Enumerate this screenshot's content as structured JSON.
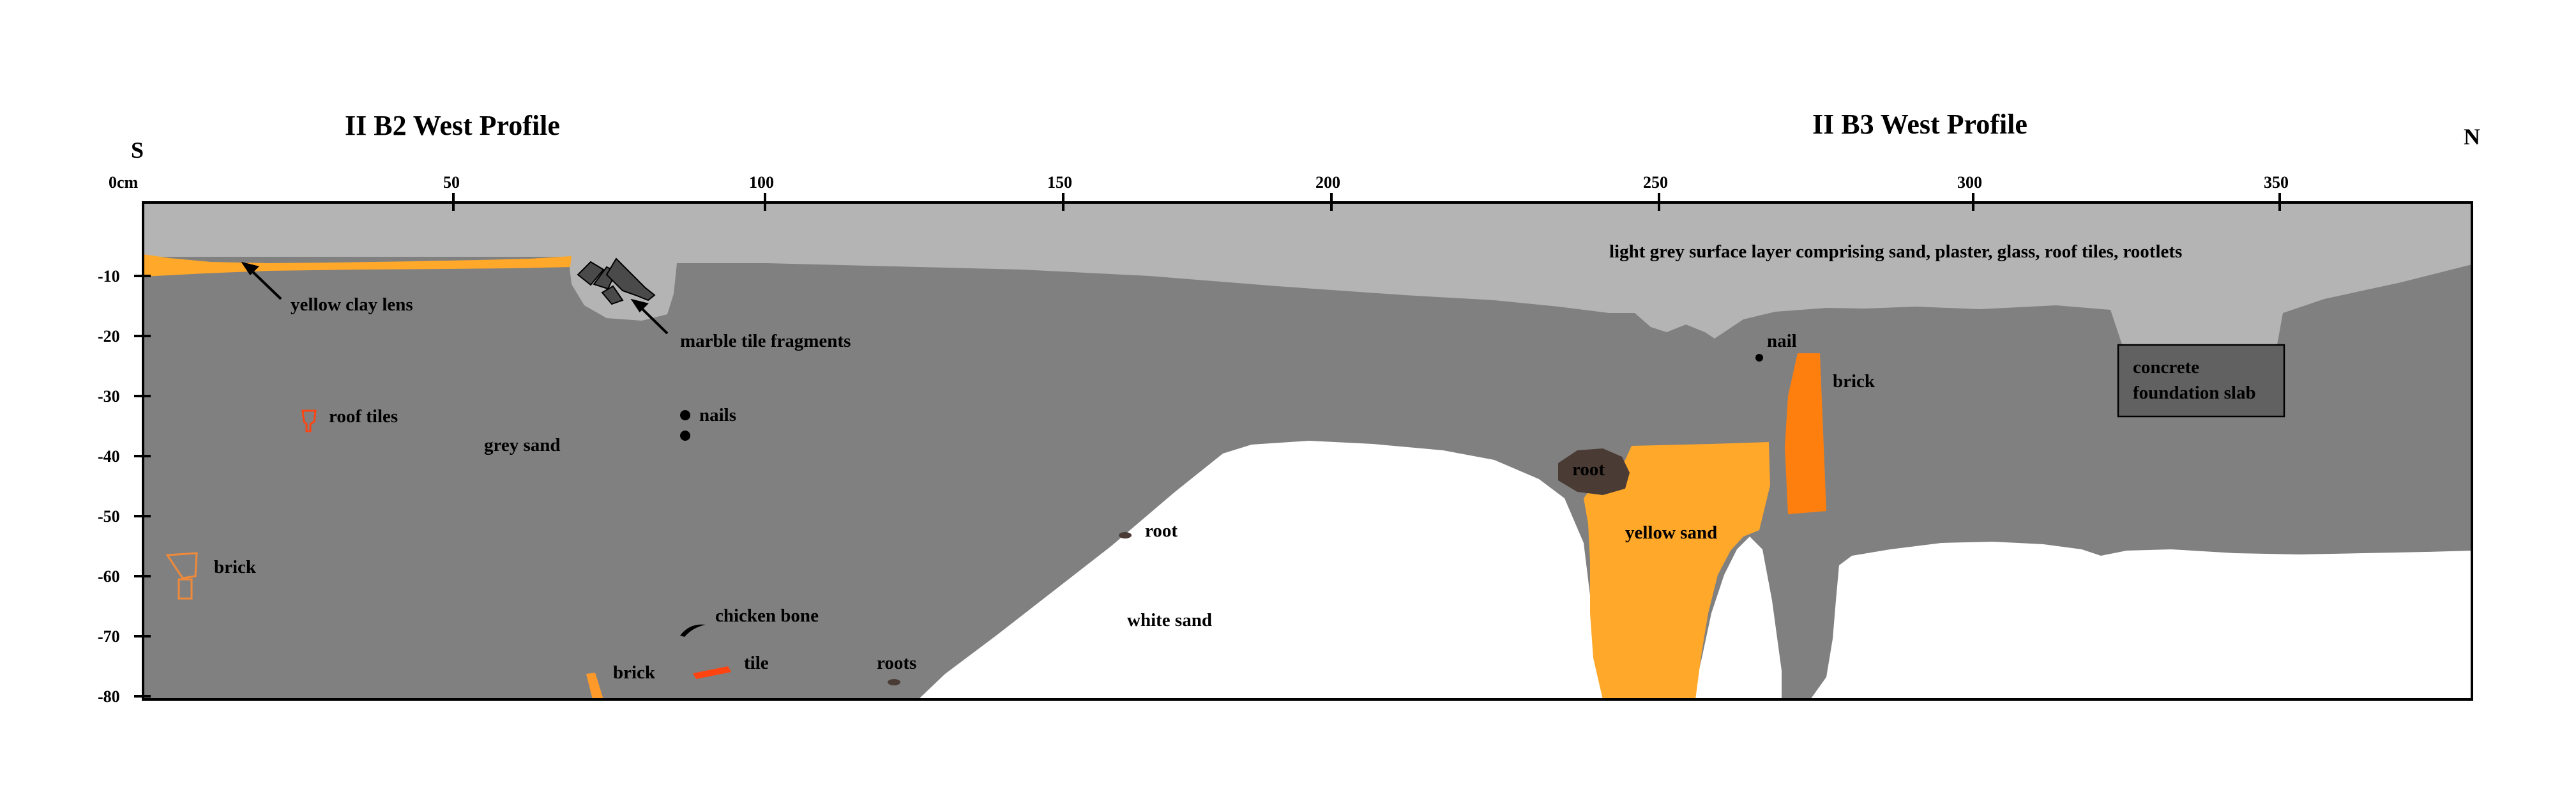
{
  "titles": {
    "left": "II B2  West Profile",
    "right": "II B3 West Profile"
  },
  "orientation": {
    "south": "S",
    "north": "N"
  },
  "x_axis": {
    "origin_label": "0cm",
    "ticks": [
      "50",
      "100",
      "150",
      "200",
      "250",
      "300",
      "350"
    ]
  },
  "y_axis": {
    "ticks": [
      "-10",
      "-20",
      "-30",
      "-40",
      "-50",
      "-60",
      "-70",
      "-80"
    ]
  },
  "labels": {
    "surface_layer": "light grey surface layer comprising sand, plaster, glass, roof tiles, rootlets",
    "yellow_clay_lens": "yellow clay lens",
    "marble_tile_fragments": "marble tile fragments",
    "roof_tiles": "roof tiles",
    "grey_sand": "grey sand",
    "nails": "nails",
    "brick_left": "brick",
    "chicken_bone": "chicken bone",
    "brick_bottom": "brick",
    "tile": "tile",
    "roots": "roots",
    "root_small": "root",
    "white_sand": "white sand",
    "root_large": "root",
    "yellow_sand": "yellow sand",
    "nail": "nail",
    "brick_right": "brick",
    "concrete_line1": "concrete",
    "concrete_line2": "foundation slab"
  },
  "colors": {
    "surface": "#b4b4b4",
    "grey_sand": "#808080",
    "white_sand": "#ffffff",
    "yellow": "#ffa82a",
    "orange_brick": "#ff7f0e",
    "red_tile": "#ff4412",
    "root": "#4a3c35",
    "concrete": "#616161"
  }
}
